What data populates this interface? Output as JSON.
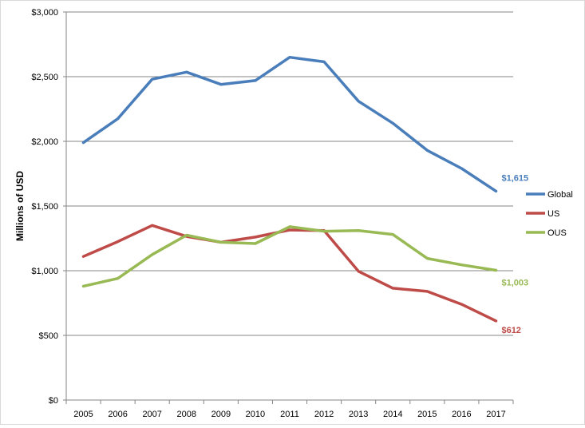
{
  "chart_data": {
    "type": "line",
    "title": "",
    "xlabel": "",
    "ylabel": "Millions of USD",
    "categories": [
      "2005",
      "2006",
      "2007",
      "2008",
      "2009",
      "2010",
      "2011",
      "2012",
      "2013",
      "2014",
      "2015",
      "2016",
      "2017"
    ],
    "ylim": [
      0,
      3000
    ],
    "yticks": [
      0,
      500,
      1000,
      1500,
      2000,
      2500,
      3000
    ],
    "ytick_labels": [
      "$0",
      "$500",
      "$1,000",
      "$1,500",
      "$2,000",
      "$2,500",
      "$3,000"
    ],
    "grid": true,
    "legend_position": "right",
    "series": [
      {
        "name": "Global",
        "color": "#4a7ebb",
        "values": [
          1990,
          2175,
          2480,
          2535,
          2440,
          2470,
          2650,
          2615,
          2310,
          2140,
          1930,
          1790,
          1615
        ],
        "end_label": "$1,615"
      },
      {
        "name": "US",
        "color": "#be4b48",
        "values": [
          1110,
          1225,
          1350,
          1265,
          1220,
          1260,
          1315,
          1310,
          995,
          865,
          840,
          740,
          612
        ],
        "end_label": "$612"
      },
      {
        "name": "OUS",
        "color": "#98b954",
        "values": [
          880,
          940,
          1125,
          1275,
          1220,
          1210,
          1340,
          1305,
          1310,
          1280,
          1095,
          1045,
          1003
        ],
        "end_label": "$1,003"
      }
    ]
  }
}
